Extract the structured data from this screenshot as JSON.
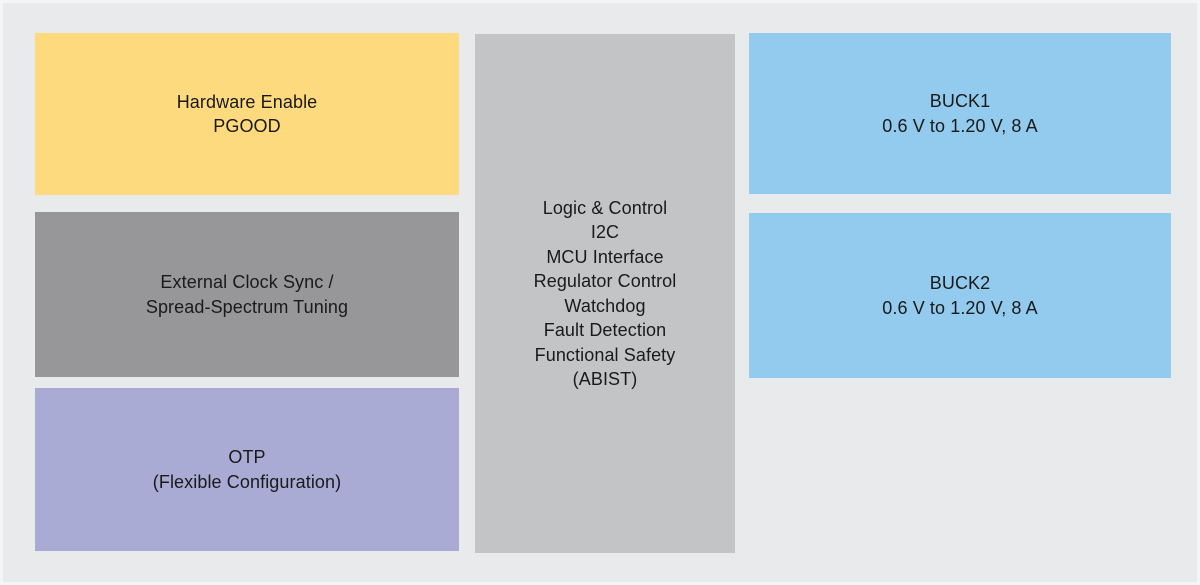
{
  "diagram": {
    "description": "PMIC functional block diagram",
    "background_color": "#e8eaec",
    "text_color": "#1a1a1a",
    "blocks": {
      "hardware_enable": {
        "color": "#fdda7e",
        "lines": [
          "Hardware Enable",
          "PGOOD"
        ]
      },
      "external_clock": {
        "color": "#97979a",
        "lines": [
          "External Clock Sync /",
          "Spread-Spectrum Tuning"
        ]
      },
      "otp": {
        "color": "#a9abd4",
        "lines": [
          "OTP",
          "(Flexible Configuration)"
        ]
      },
      "logic_control": {
        "color": "#c3c4c6",
        "lines": [
          "Logic & Control",
          "I2C",
          "MCU Interface",
          "Regulator Control",
          "Watchdog",
          "Fault Detection",
          "Functional Safety",
          "(ABIST)"
        ]
      },
      "buck1": {
        "color": "#92cbed",
        "lines": [
          "BUCK1",
          "0.6 V to 1.20 V, 8 A"
        ]
      },
      "buck2": {
        "color": "#92cbed",
        "lines": [
          "BUCK2",
          "0.6 V to 1.20 V, 8 A"
        ]
      }
    }
  }
}
